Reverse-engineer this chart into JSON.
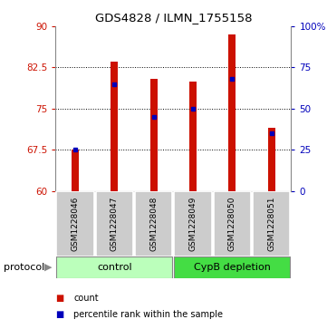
{
  "title": "GDS4828 / ILMN_1755158",
  "samples": [
    "GSM1228046",
    "GSM1228047",
    "GSM1228048",
    "GSM1228049",
    "GSM1228050",
    "GSM1228051"
  ],
  "groups": [
    "control",
    "control",
    "control",
    "CypB depletion",
    "CypB depletion",
    "CypB depletion"
  ],
  "red_values": [
    67.5,
    83.5,
    80.5,
    80.0,
    88.5,
    71.5
  ],
  "blue_values": [
    67.5,
    79.5,
    73.5,
    75.0,
    80.5,
    70.5
  ],
  "y_min": 60,
  "y_max": 90,
  "y_ticks_left": [
    60,
    67.5,
    75,
    82.5,
    90
  ],
  "y_ticks_right_values": [
    0,
    25,
    50,
    75,
    100
  ],
  "y_ticks_right_positions": [
    60,
    67.5,
    75,
    82.5,
    90
  ],
  "dotted_lines": [
    67.5,
    75,
    82.5
  ],
  "bar_color": "#cc1100",
  "dot_color": "#0000bb",
  "bar_width": 0.18,
  "dot_size": 18,
  "ctrl_color_light": "#bbffbb",
  "ctrl_color_dark": "#44dd44",
  "legend_count_label": "count",
  "legend_percentile_label": "percentile rank within the sample",
  "protocol_label": "protocol",
  "plot_bg": "#ffffff",
  "label_bg": "#cccccc",
  "group_border_color": "#888888"
}
